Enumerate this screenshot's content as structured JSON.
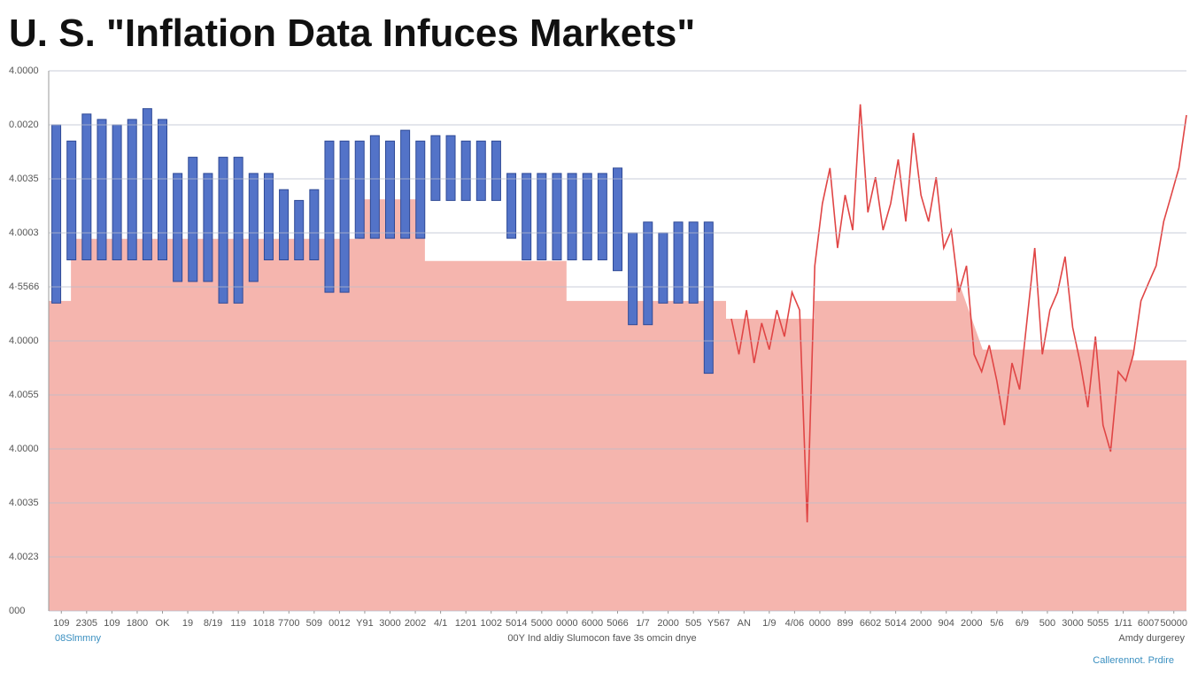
{
  "chart_data": {
    "type": "combo",
    "title": "U. S.  \"Inflation Data Infuces Markets\"",
    "annotations": [
      "08Slmmny",
      "00Y Ind aldiy Slumocon fave 3s omcin dnye",
      "Amdy durgerey",
      "Callerennot. Prdire"
    ],
    "xlim": [
      0,
      45
    ],
    "ylim": [
      0,
      10
    ],
    "grid": true,
    "yticks": [
      {
        "value": 0,
        "label": "000"
      },
      {
        "value": 1,
        "label": "4.0023"
      },
      {
        "value": 2,
        "label": "4.0035"
      },
      {
        "value": 3,
        "label": "4.0000"
      },
      {
        "value": 4,
        "label": "4.0055"
      },
      {
        "value": 5,
        "label": "4.0000"
      },
      {
        "value": 6,
        "label": "4·5566"
      },
      {
        "value": 7,
        "label": "4.0003"
      },
      {
        "value": 8,
        "label": "4.0035"
      },
      {
        "value": 9,
        "label": "0.0020"
      },
      {
        "value": 10,
        "label": "4.0000"
      }
    ],
    "xticks": [
      {
        "value": 0.5,
        "label": "109"
      },
      {
        "value": 1.5,
        "label": "2305"
      },
      {
        "value": 2.5,
        "label": "109"
      },
      {
        "value": 3.5,
        "label": "1800"
      },
      {
        "value": 4.5,
        "label": "OK"
      },
      {
        "value": 5.5,
        "label": "19"
      },
      {
        "value": 6.5,
        "label": "8/19"
      },
      {
        "value": 7.5,
        "label": "119"
      },
      {
        "value": 8.5,
        "label": "1018"
      },
      {
        "value": 9.5,
        "label": "7700"
      },
      {
        "value": 10.5,
        "label": "509"
      },
      {
        "value": 11.5,
        "label": "0012"
      },
      {
        "value": 12.5,
        "label": "Y91"
      },
      {
        "value": 13.5,
        "label": "3000"
      },
      {
        "value": 14.5,
        "label": "2002"
      },
      {
        "value": 15.5,
        "label": "4/1"
      },
      {
        "value": 16.5,
        "label": "1201"
      },
      {
        "value": 17.5,
        "label": "1002"
      },
      {
        "value": 18.5,
        "label": "5014"
      },
      {
        "value": 19.5,
        "label": "5000"
      },
      {
        "value": 20.5,
        "label": "0000"
      },
      {
        "value": 21.5,
        "label": "6000"
      },
      {
        "value": 22.5,
        "label": "5066"
      },
      {
        "value": 23.5,
        "label": "1/7"
      },
      {
        "value": 24.5,
        "label": "2000"
      },
      {
        "value": 25.5,
        "label": "505"
      },
      {
        "value": 26.5,
        "label": "Y567"
      },
      {
        "value": 27.5,
        "label": "AN"
      },
      {
        "value": 28.5,
        "label": "1/9"
      },
      {
        "value": 29.5,
        "label": "4/06"
      },
      {
        "value": 30.5,
        "label": "0000"
      },
      {
        "value": 31.5,
        "label": "899"
      },
      {
        "value": 32.5,
        "label": "6602"
      },
      {
        "value": 33.5,
        "label": "5014"
      },
      {
        "value": 34.5,
        "label": "2000"
      },
      {
        "value": 35.5,
        "label": "904"
      },
      {
        "value": 36.5,
        "label": "2000"
      },
      {
        "value": 37.5,
        "label": "5/6"
      },
      {
        "value": 38.5,
        "label": "6/9"
      },
      {
        "value": 39.5,
        "label": "500"
      },
      {
        "value": 40.5,
        "label": "3000"
      },
      {
        "value": 41.5,
        "label": "5055"
      },
      {
        "value": 42.5,
        "label": "1/11"
      },
      {
        "value": 43.5,
        "label": "6007"
      },
      {
        "value": 44.5,
        "label": "50000"
      }
    ],
    "series": [
      {
        "type": "area",
        "color": "#f5b5ae",
        "x": [
          0,
          0.88,
          0.88,
          12.25,
          12.25,
          14.88,
          14.88,
          20.48,
          20.48,
          26.79,
          26.79,
          30.29,
          30.29,
          35.89,
          35.89,
          36.94,
          36.94,
          42.89,
          42.89,
          45
        ],
        "values": [
          5.74,
          5.74,
          6.89,
          6.89,
          7.62,
          7.62,
          6.48,
          6.48,
          5.74,
          5.74,
          5.41,
          5.41,
          5.74,
          5.74,
          6.23,
          4.84,
          4.84,
          4.84,
          4.64,
          4.64
        ]
      },
      {
        "type": "range-bar",
        "color": "#5373c8",
        "x": [
          0.3,
          0.9,
          1.5,
          2.1,
          2.7,
          3.3,
          3.9,
          4.5,
          5.1,
          5.7,
          6.3,
          6.9,
          7.5,
          8.1,
          8.7,
          9.3,
          9.9,
          10.5,
          11.1,
          11.7,
          12.3,
          12.9,
          13.5,
          14.1,
          14.7,
          15.3,
          15.9,
          16.5,
          17.1,
          17.7,
          18.3,
          18.9,
          19.5,
          20.1,
          20.7,
          21.3,
          21.9,
          22.5,
          23.1,
          23.7,
          24.3,
          24.9,
          25.5,
          26.1
        ],
        "high": [
          9.0,
          8.7,
          9.2,
          9.1,
          9.0,
          9.1,
          9.3,
          9.1,
          8.1,
          8.4,
          8.1,
          8.4,
          8.4,
          8.1,
          8.1,
          7.8,
          7.6,
          7.8,
          8.7,
          8.7,
          8.7,
          8.8,
          8.7,
          8.9,
          8.7,
          8.8,
          8.8,
          8.7,
          8.7,
          8.7,
          8.1,
          8.1,
          8.1,
          8.1,
          8.1,
          8.1,
          8.1,
          8.2,
          7.0,
          7.2,
          7.0,
          7.2,
          7.2,
          7.2
        ],
        "low": [
          5.7,
          6.5,
          6.5,
          6.5,
          6.5,
          6.5,
          6.5,
          6.5,
          6.1,
          6.1,
          6.1,
          5.7,
          5.7,
          6.1,
          6.5,
          6.5,
          6.5,
          6.5,
          5.9,
          5.9,
          6.9,
          6.9,
          6.9,
          6.9,
          6.9,
          7.6,
          7.6,
          7.6,
          7.6,
          7.6,
          6.9,
          6.5,
          6.5,
          6.5,
          6.5,
          6.5,
          6.5,
          6.3,
          5.3,
          5.3,
          5.7,
          5.7,
          5.7,
          4.4
        ]
      },
      {
        "type": "line",
        "color": "#e04545",
        "x": [
          27.0,
          27.3,
          27.6,
          27.9,
          28.2,
          28.5,
          28.8,
          29.1,
          29.4,
          29.7,
          30.0,
          30.3,
          30.6,
          30.9,
          31.2,
          31.5,
          31.8,
          32.1,
          32.4,
          32.7,
          33.0,
          33.3,
          33.6,
          33.9,
          34.2,
          34.5,
          34.8,
          35.1,
          35.4,
          35.7,
          36.0,
          36.3,
          36.6,
          36.9,
          37.2,
          37.5,
          37.8,
          38.1,
          38.4,
          38.7,
          39.0,
          39.3,
          39.6,
          39.9,
          40.2,
          40.5,
          40.8,
          41.1,
          41.4,
          41.7,
          42.0,
          42.3,
          42.6,
          42.9,
          43.2,
          43.5,
          43.8,
          44.1,
          44.4,
          44.7,
          45.0
        ],
        "values": [
          5.41,
          4.75,
          5.57,
          4.59,
          5.33,
          4.84,
          5.57,
          5.08,
          5.9,
          5.57,
          1.64,
          6.39,
          7.54,
          8.2,
          6.72,
          7.7,
          7.05,
          9.38,
          7.38,
          8.03,
          7.05,
          7.54,
          8.36,
          7.21,
          8.85,
          7.7,
          7.21,
          8.03,
          6.72,
          7.05,
          5.9,
          6.39,
          4.75,
          4.43,
          4.92,
          4.26,
          3.44,
          4.59,
          4.1,
          5.41,
          6.72,
          4.75,
          5.57,
          5.9,
          6.56,
          5.25,
          4.59,
          3.77,
          5.08,
          3.44,
          2.95,
          4.43,
          4.26,
          4.75,
          5.74,
          6.07,
          6.39,
          7.21,
          7.7,
          8.2,
          9.18
        ]
      }
    ]
  }
}
